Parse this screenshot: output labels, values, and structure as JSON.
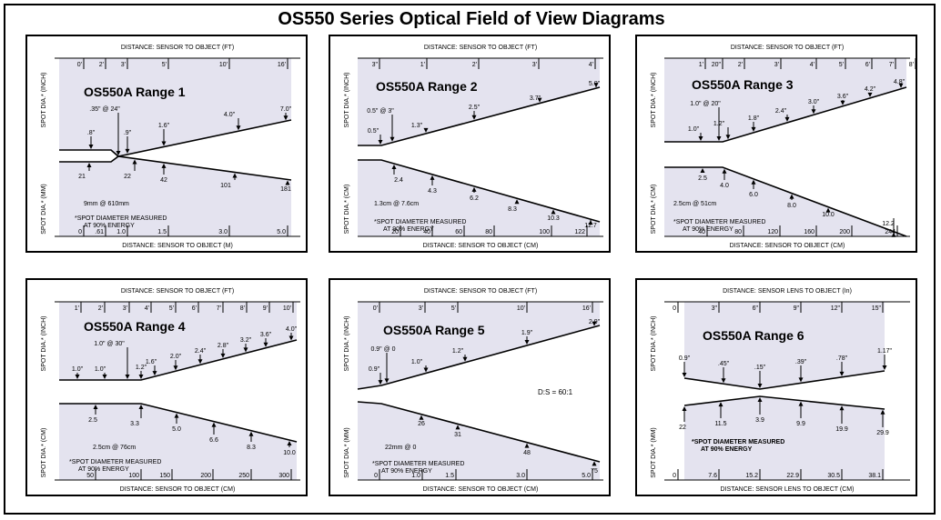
{
  "title": "OS550 Series Optical Field of View Diagrams",
  "panels": [
    {
      "title": "OS550A Range 1",
      "top_axis": "DISTANCE: SENSOR TO OBJECT (FT)",
      "bottom_axis": "DISTANCE: SENSOR TO OBJECT (M)",
      "y_top": "SPOT DIA.* (INCH)",
      "y_bottom": "SPOT DIA.* (MM)",
      "top_ticks": [
        "0'",
        "2'",
        "3'",
        "5'",
        "10'",
        "16'"
      ],
      "bottom_ticks": [
        "0",
        ".61",
        "1.0",
        "1.5",
        "3.0",
        "5.0"
      ],
      "upper_labels": [
        ".8\"",
        ".35\" @ 24\"",
        ".9\"",
        "1.6\"",
        "4.0\"",
        "7.0\""
      ],
      "lower_labels": [
        "21",
        "22",
        "42",
        "101",
        "181"
      ],
      "focus_note": "9mm @ 610mm",
      "measure_note": [
        "*SPOT DIAMETER MEASURED",
        "AT 90% ENERGY"
      ]
    },
    {
      "title": "OS550A Range 2",
      "top_axis": "DISTANCE: SENSOR TO OBJECT (FT)",
      "bottom_axis": "DISTANCE: SENSOR TO OBJECT (CM)",
      "y_top": "SPOT DIA.* (INCH)",
      "y_bottom": "SPOT DIA.* (CM)",
      "top_ticks": [
        "3\"",
        "1'",
        "2'",
        "3'",
        "4'"
      ],
      "bottom_ticks": [
        "20",
        "40",
        "60",
        "80",
        "100",
        "122"
      ],
      "upper_labels": [
        "0.5\" @ 3\"",
        "0.5\"",
        "1.3\"",
        "2.5\"",
        "3.7\"",
        "5.0\""
      ],
      "lower_labels": [
        "2.4",
        "4.3",
        "6.2",
        "8.3",
        "10.3",
        "12.7"
      ],
      "focus_note": "1.3cm @ 7.6cm",
      "measure_note": [
        "*SPOT DIAMETER MEASURED",
        "AT 90% ENERGY"
      ]
    },
    {
      "title": "OS550A Range 3",
      "top_axis": "DISTANCE: SENSOR TO OBJECT (FT)",
      "bottom_axis": "DISTANCE: SENSOR TO OBJECT (CM)",
      "y_top": "SPOT DIA.* (INCH)",
      "y_bottom": "SPOT DIA.* (CM)",
      "top_ticks": [
        "1'",
        "20\"",
        "2'",
        "3'",
        "4'",
        "5'",
        "6'",
        "7'",
        "8'"
      ],
      "bottom_ticks": [
        "40",
        "80",
        "120",
        "160",
        "200",
        "244"
      ],
      "upper_labels": [
        "1.0\" @ 20\"",
        "1.0\"",
        "1.2\"",
        "1.8\"",
        "2.4\"",
        "3.0\"",
        "3.6\"",
        "4.2\"",
        "4.8\""
      ],
      "lower_labels": [
        "2.5",
        "4.0",
        "6.0",
        "8.0",
        "10.0",
        "12.2"
      ],
      "focus_note": "2.5cm @ 51cm",
      "measure_note": [
        "*SPOT DIAMETER MEASURED",
        "AT 90% ENERGY"
      ]
    },
    {
      "title": "OS550A Range 4",
      "top_axis": "DISTANCE: SENSOR TO OBJECT (FT)",
      "bottom_axis": "DISTANCE: SENSOR TO OBJECT (CM)",
      "y_top": "SPOT DIA.* (INCH)",
      "y_bottom": "SPOT DIA.* (CM)",
      "top_ticks": [
        "1'",
        "2'",
        "3'",
        "4'",
        "5'",
        "6'",
        "7'",
        "8'",
        "9'",
        "10'"
      ],
      "bottom_ticks": [
        "50",
        "100",
        "150",
        "200",
        "250",
        "300"
      ],
      "upper_labels": [
        "1.0\" @ 30\"",
        "1.0\"",
        "1.0\"",
        "1.2\"",
        "1.6\"",
        "2.0\"",
        "2.4\"",
        "2.8\"",
        "3.2\"",
        "3.6\"",
        "4.0\""
      ],
      "lower_labels": [
        "2.5",
        "3.3",
        "5.0",
        "6.6",
        "8.3",
        "10.0"
      ],
      "focus_note": "2.5cm @ 76cm",
      "measure_note": [
        "*SPOT DIAMETER MEASURED",
        "AT 90% ENERGY"
      ]
    },
    {
      "title": "OS550A Range 5",
      "top_axis": "DISTANCE: SENSOR TO OBJECT (FT)",
      "bottom_axis": "DISTANCE: SENSOR TO OBJECT (CM)",
      "y_top": "SPOT DIA.* (INCH)",
      "y_bottom": "SPOT DIA.* (MM)",
      "top_ticks": [
        "0'",
        "3'",
        "5'",
        "10'",
        "16'"
      ],
      "bottom_ticks": [
        "0",
        "1.0",
        "1.5",
        "3.0",
        "5.0"
      ],
      "upper_labels": [
        "0.9\" @ 0",
        "0.9\"",
        "1.0\"",
        "1.2\"",
        "1.9\"",
        "2.9\""
      ],
      "lower_labels": [
        "26",
        "31",
        "48",
        "75"
      ],
      "focus_note": "22mm @ 0",
      "ratio_note": "D:S = 60:1",
      "measure_note": [
        "*SPOT DIAMETER MEASURED",
        "AT 90% ENERGY"
      ]
    },
    {
      "title": "OS550A Range 6",
      "top_axis": "DISTANCE: SENSOR LENS TO OBJECT (In)",
      "bottom_axis": "DISTANCE: SENSOR LENS TO OBJECT (CM)",
      "y_top": "SPOT DIA.* (INCH)",
      "y_bottom": "SPOT DIA.* (MM)",
      "top_ticks": [
        "0",
        "3\"",
        "6\"",
        "9\"",
        "12\"",
        "15\""
      ],
      "bottom_ticks": [
        "0",
        "7.6",
        "15.2",
        "22.9",
        "30.5",
        "38.1"
      ],
      "upper_labels": [
        "0.9\"",
        ".45\"",
        ".15\"",
        ".39\"",
        ".78\"",
        "1.17\""
      ],
      "lower_labels": [
        "22",
        "11.5",
        "3.9",
        "9.9",
        "19.9",
        "29.9"
      ],
      "measure_note": [
        "*SPOT DIAMETER MEASURED",
        "AT 90% ENERGY"
      ]
    }
  ]
}
